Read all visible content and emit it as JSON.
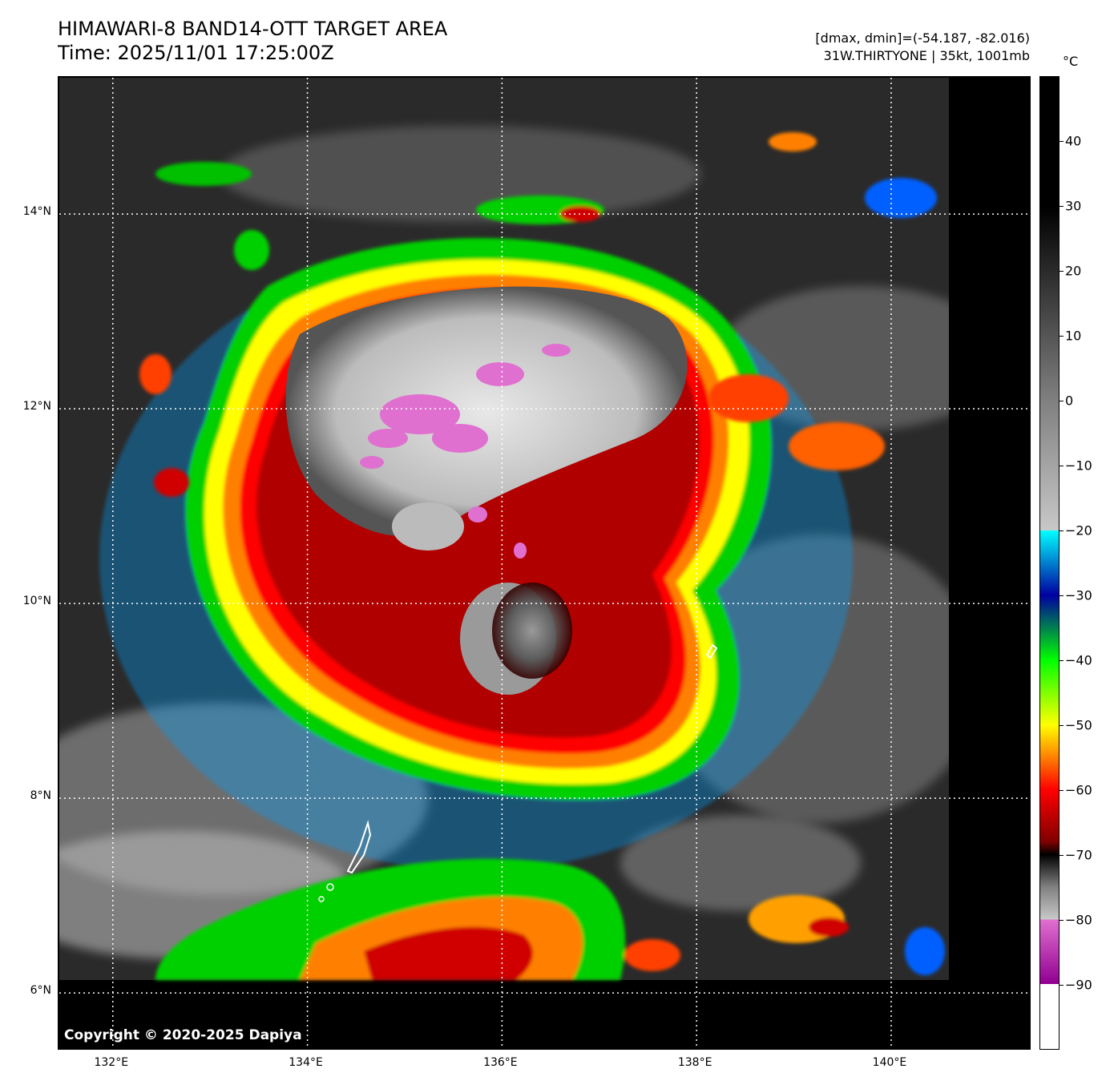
{
  "header": {
    "title_line1": "HIMAWARI-8 BAND14-OTT TARGET AREA",
    "title_line2": "Time: 2025/11/01 17:25:00Z",
    "info_line1": "[dmax, dmin]=(-54.187, -82.016)",
    "info_line2": "31W.THIRTYONE | 35kt, 1001mb"
  },
  "map": {
    "copyright": "Copyright © 2020-2025 Dapiya",
    "lat_labels": [
      {
        "label": "14°N",
        "value": 14
      },
      {
        "label": "12°N",
        "value": 12
      },
      {
        "label": "10°N",
        "value": 10
      },
      {
        "label": "8°N",
        "value": 8
      },
      {
        "label": "6°N",
        "value": 6
      }
    ],
    "lon_labels": [
      {
        "label": "132°E",
        "value": 132
      },
      {
        "label": "134°E",
        "value": 134
      },
      {
        "label": "136°E",
        "value": 136
      },
      {
        "label": "138°E",
        "value": 138
      },
      {
        "label": "140°E",
        "value": 140
      }
    ],
    "lat_range": [
      5.4,
      15.4
    ],
    "lon_range": [
      131.45,
      141.45
    ]
  },
  "colorbar": {
    "unit": "°C",
    "range": [
      -100,
      50
    ],
    "tick_labels": [
      {
        "label": "40",
        "value": 40
      },
      {
        "label": "30",
        "value": 30
      },
      {
        "label": "20",
        "value": 20
      },
      {
        "label": "10",
        "value": 10
      },
      {
        "label": "0",
        "value": 0
      },
      {
        "label": "−10",
        "value": -10
      },
      {
        "label": "−20",
        "value": -20
      },
      {
        "label": "−30",
        "value": -30
      },
      {
        "label": "−40",
        "value": -40
      },
      {
        "label": "−50",
        "value": -50
      },
      {
        "label": "−60",
        "value": -60
      },
      {
        "label": "−70",
        "value": -70
      },
      {
        "label": "−80",
        "value": -80
      },
      {
        "label": "−90",
        "value": -90
      }
    ],
    "colors": {
      "warm_black": "#000000",
      "gray_mid": "#808080",
      "gray_light": "#c8c8c8",
      "cyan": "#00ffff",
      "blue": "#0000a0",
      "green": "#00ff00",
      "yellow": "#ffff00",
      "orange": "#ff8000",
      "red": "#ff0000",
      "dark_red": "#800000",
      "magenta": "#e070d0",
      "purple": "#900090",
      "white": "#ffffff"
    }
  }
}
